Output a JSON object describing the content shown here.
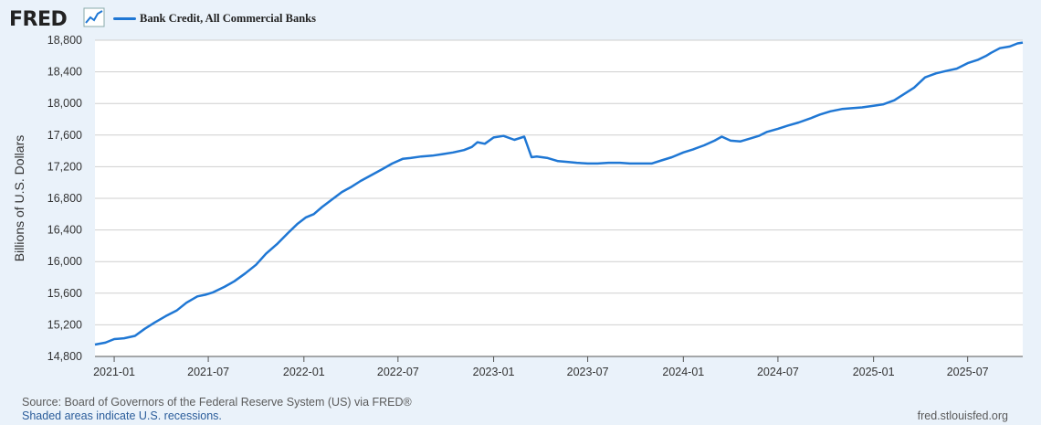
{
  "header": {
    "logo": "FRED",
    "logo_icon": "line-chart-icon",
    "series_label": "Bank Credit, All Commercial Banks"
  },
  "footer": {
    "source": "Source: Board of Governors of the Federal Reserve System (US) via FRED®",
    "recessions": "Shaded areas indicate U.S. recessions.",
    "site": "fred.stlouisfed.org"
  },
  "colors": {
    "line": "#1f77d4",
    "background": "#eaf2fa",
    "plot_bg": "#ffffff",
    "grid": "#c8c8c8"
  },
  "chart_data": {
    "type": "line",
    "title": "",
    "ylabel": "Billions of U.S. Dollars",
    "xlabel": "",
    "ylim": [
      14800,
      18800
    ],
    "yticks": [
      14800,
      15200,
      15600,
      16000,
      16400,
      16800,
      17200,
      17600,
      18000,
      18400,
      18800
    ],
    "ytick_labels": [
      "14,800",
      "15,200",
      "15,600",
      "16,000",
      "16,400",
      "16,800",
      "17,200",
      "17,600",
      "18,000",
      "18,400",
      "18,800"
    ],
    "xlim": [
      "2020-11-25",
      "2025-10-15"
    ],
    "xticks": [
      "2021-01-01",
      "2021-07-01",
      "2022-01-01",
      "2022-07-01",
      "2023-01-01",
      "2023-07-01",
      "2024-01-01",
      "2024-07-01",
      "2025-01-01",
      "2025-07-01"
    ],
    "xtick_labels": [
      "2021-01",
      "2021-07",
      "2022-01",
      "2022-07",
      "2023-01",
      "2023-07",
      "2024-01",
      "2024-07",
      "2025-01",
      "2025-07"
    ],
    "grid": true,
    "legend": "top-left",
    "series": [
      {
        "name": "Bank Credit, All Commercial Banks",
        "x": [
          "2020-11-25",
          "2020-12-15",
          "2021-01-01",
          "2021-01-20",
          "2021-02-10",
          "2021-03-01",
          "2021-03-20",
          "2021-04-10",
          "2021-05-01",
          "2021-05-20",
          "2021-06-10",
          "2021-06-25",
          "2021-07-10",
          "2021-08-01",
          "2021-08-20",
          "2021-09-10",
          "2021-10-01",
          "2021-10-20",
          "2021-11-10",
          "2021-12-01",
          "2021-12-20",
          "2022-01-05",
          "2022-01-20",
          "2022-02-05",
          "2022-02-25",
          "2022-03-15",
          "2022-04-01",
          "2022-04-20",
          "2022-05-10",
          "2022-06-01",
          "2022-06-20",
          "2022-07-10",
          "2022-07-25",
          "2022-08-15",
          "2022-09-05",
          "2022-09-25",
          "2022-10-15",
          "2022-11-05",
          "2022-11-20",
          "2022-12-01",
          "2022-12-15",
          "2023-01-01",
          "2023-01-20",
          "2023-02-10",
          "2023-03-01",
          "2023-03-15",
          "2023-03-25",
          "2023-04-15",
          "2023-05-05",
          "2023-05-25",
          "2023-06-10",
          "2023-07-01",
          "2023-07-20",
          "2023-08-10",
          "2023-09-01",
          "2023-09-20",
          "2023-10-10",
          "2023-11-01",
          "2023-11-20",
          "2023-12-10",
          "2024-01-01",
          "2024-01-20",
          "2024-02-10",
          "2024-03-01",
          "2024-03-15",
          "2024-04-01",
          "2024-04-20",
          "2024-05-10",
          "2024-05-25",
          "2024-06-10",
          "2024-07-01",
          "2024-07-20",
          "2024-08-10",
          "2024-09-01",
          "2024-09-20",
          "2024-10-10",
          "2024-11-01",
          "2024-11-20",
          "2024-12-10",
          "2025-01-01",
          "2025-01-20",
          "2025-02-10",
          "2025-03-01",
          "2025-03-20",
          "2025-04-10",
          "2025-05-01",
          "2025-05-20",
          "2025-06-10",
          "2025-07-01",
          "2025-07-20",
          "2025-08-05",
          "2025-08-15",
          "2025-09-01",
          "2025-09-20",
          "2025-10-05",
          "2025-10-15"
        ],
        "y": [
          14950,
          14975,
          15020,
          15030,
          15060,
          15150,
          15230,
          15310,
          15380,
          15480,
          15560,
          15580,
          15610,
          15680,
          15750,
          15850,
          15960,
          16100,
          16220,
          16360,
          16480,
          16560,
          16600,
          16690,
          16790,
          16880,
          16940,
          17020,
          17090,
          17170,
          17240,
          17300,
          17310,
          17330,
          17340,
          17360,
          17380,
          17410,
          17450,
          17510,
          17490,
          17570,
          17590,
          17540,
          17580,
          17320,
          17330,
          17310,
          17270,
          17260,
          17250,
          17240,
          17240,
          17250,
          17250,
          17240,
          17240,
          17240,
          17280,
          17320,
          17380,
          17420,
          17470,
          17530,
          17580,
          17530,
          17520,
          17560,
          17590,
          17640,
          17680,
          17720,
          17760,
          17810,
          17860,
          17900,
          17930,
          17940,
          17950,
          17970,
          17990,
          18040,
          18120,
          18200,
          18330,
          18380,
          18410,
          18440,
          18510,
          18550,
          18600,
          18640,
          18700,
          18720,
          18760,
          18770
        ]
      }
    ]
  }
}
